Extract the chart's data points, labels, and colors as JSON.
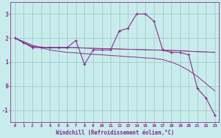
{
  "xlabel": "Windchill (Refroidissement éolien,°C)",
  "background_color": "#c8ecec",
  "grid_color": "#a0c8c8",
  "line_color": "#882288",
  "x_hours": [
    0,
    1,
    2,
    3,
    4,
    5,
    6,
    7,
    8,
    9,
    10,
    11,
    12,
    13,
    14,
    15,
    16,
    17,
    18,
    19,
    20,
    21,
    22,
    23
  ],
  "series_windchill": [
    2.0,
    1.8,
    1.6,
    1.6,
    1.6,
    1.6,
    1.6,
    1.9,
    0.9,
    1.5,
    1.5,
    1.5,
    2.3,
    2.4,
    3.0,
    3.0,
    2.7,
    1.5,
    1.4,
    1.4,
    1.3,
    -0.1,
    -0.5,
    -1.2
  ],
  "series_flat1": [
    2.0,
    1.8,
    1.65,
    1.62,
    1.6,
    1.6,
    1.6,
    1.6,
    1.58,
    1.57,
    1.56,
    1.55,
    1.54,
    1.53,
    1.52,
    1.51,
    1.5,
    1.49,
    1.48,
    1.47,
    1.45,
    1.43,
    1.42,
    1.4
  ],
  "series_flat2": [
    2.0,
    1.8,
    1.65,
    1.62,
    1.6,
    1.6,
    1.6,
    1.6,
    1.58,
    1.57,
    1.56,
    1.55,
    1.54,
    1.53,
    1.52,
    1.51,
    1.5,
    1.49,
    1.48,
    1.47,
    1.45,
    1.43,
    1.42,
    1.4
  ],
  "series_linear": [
    2.0,
    1.85,
    1.7,
    1.6,
    1.5,
    1.45,
    1.4,
    1.38,
    1.35,
    1.32,
    1.3,
    1.27,
    1.25,
    1.22,
    1.2,
    1.17,
    1.15,
    1.1,
    1.0,
    0.85,
    0.65,
    0.4,
    0.1,
    -0.2
  ],
  "ylim": [
    -1.5,
    3.5
  ],
  "yticks": [
    -1,
    0,
    1,
    2,
    3
  ],
  "xlim": [
    -0.5,
    23.5
  ],
  "xtick_labels": [
    "0",
    "1",
    "2",
    "3",
    "4",
    "5",
    "6",
    "7",
    "8",
    "9",
    "10",
    "11",
    "12",
    "13",
    "14",
    "15",
    "16",
    "17",
    "18",
    "19",
    "20",
    "21",
    "22",
    "23"
  ]
}
